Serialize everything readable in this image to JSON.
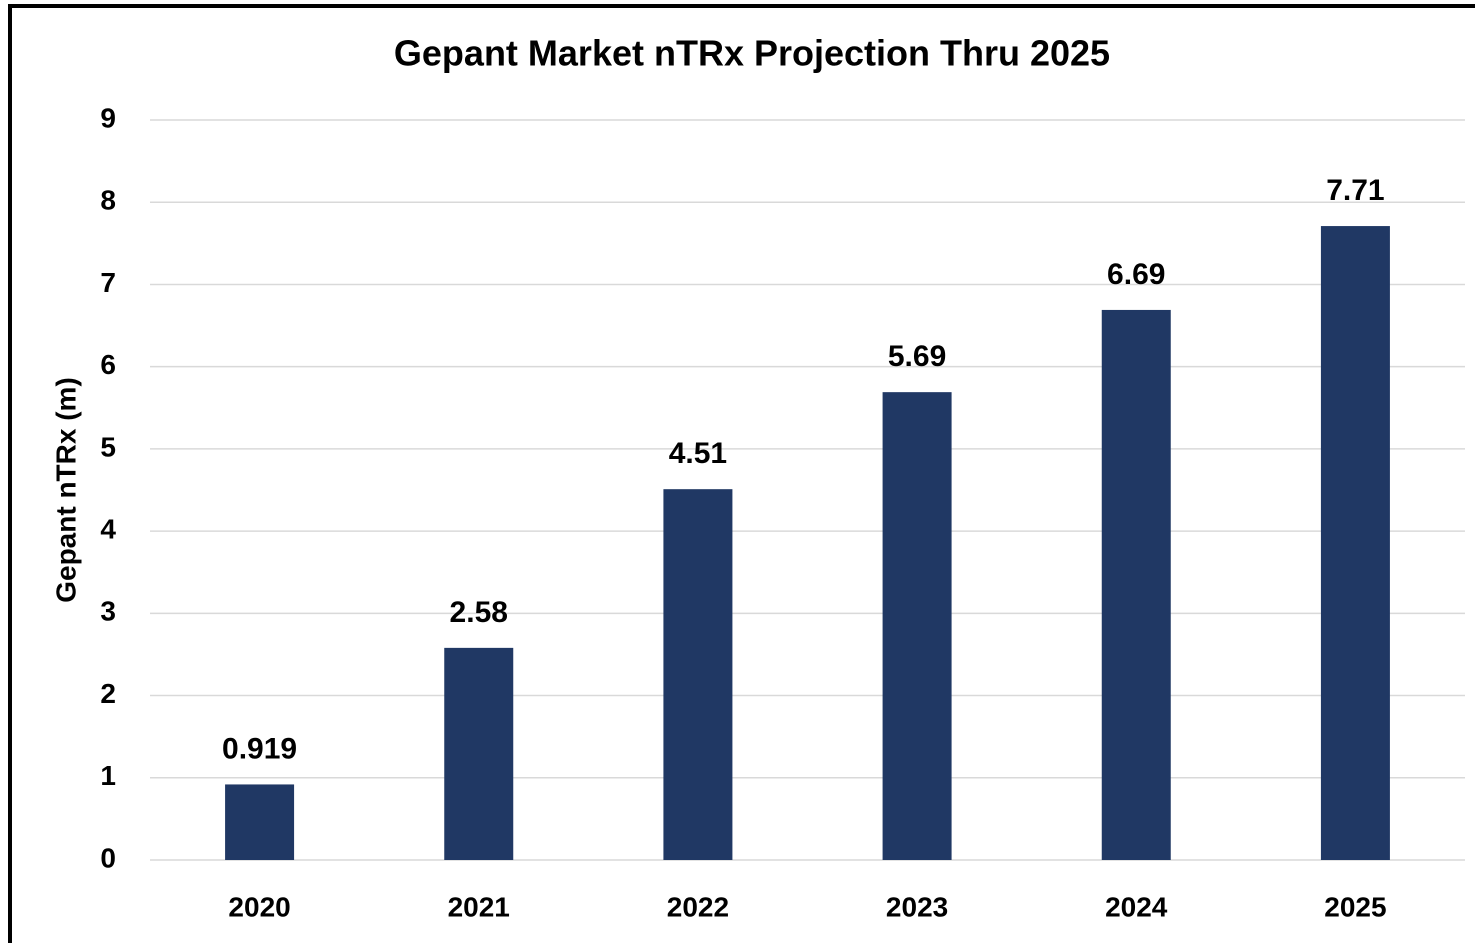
{
  "chart_data": {
    "type": "bar",
    "title": "Gepant Market nTRx Projection Thru 2025",
    "y_label": "Gepant nTRx (m)",
    "categories": [
      "2020",
      "2021",
      "2022",
      "2023",
      "2024",
      "2025"
    ],
    "values": [
      0.919,
      2.58,
      4.51,
      5.69,
      6.69,
      7.71
    ],
    "color": "#203864",
    "ylim": [
      0,
      9
    ],
    "yticks": [
      0,
      1,
      2,
      3,
      4,
      5,
      6,
      7,
      8,
      9
    ],
    "grid": true
  }
}
